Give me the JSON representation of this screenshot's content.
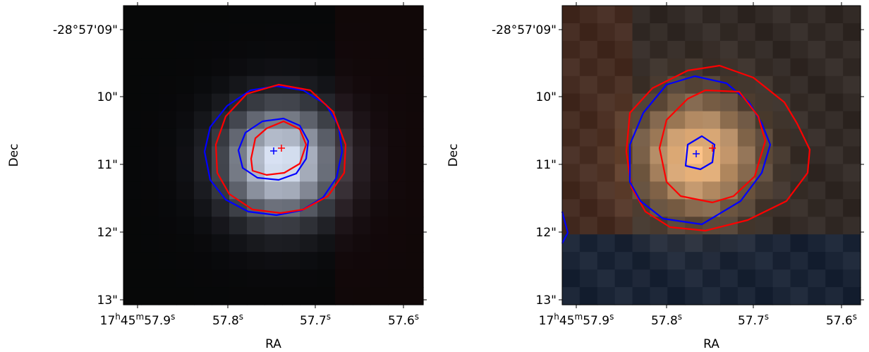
{
  "panels": [
    {
      "xlabel": "RA",
      "ylabel": "Dec",
      "xticks": [
        [
          [
            "17",
            "h"
          ],
          [
            "45",
            "m"
          ],
          [
            "57.9",
            "s"
          ]
        ],
        [
          [
            "57.8",
            "s"
          ]
        ],
        [
          [
            "57.7",
            "s"
          ]
        ],
        [
          [
            "57.6",
            "s"
          ]
        ]
      ],
      "yticks": [
        "-28°57'09\"",
        "10\"",
        "11\"",
        "12\"",
        "13\""
      ]
    },
    {
      "xlabel": "RA",
      "ylabel": "Dec",
      "xticks": [
        [
          [
            "17",
            "h"
          ],
          [
            "45",
            "m"
          ],
          [
            "57.9",
            "s"
          ]
        ],
        [
          [
            "57.8",
            "s"
          ]
        ],
        [
          [
            "57.7",
            "s"
          ]
        ],
        [
          [
            "57.6",
            "s"
          ]
        ]
      ],
      "yticks": [
        "-28°57'09\"",
        "10\"",
        "11\"",
        "12\"",
        "13\""
      ]
    }
  ]
}
